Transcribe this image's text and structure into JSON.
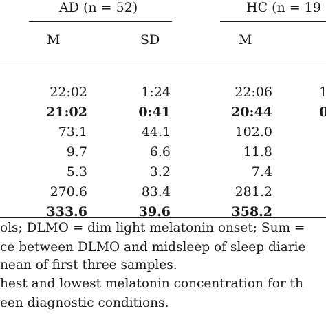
{
  "header": {
    "group_ad": "AD (n = 52)",
    "group_hc": "HC (n = 19",
    "col_m": "M",
    "col_sd": "SD"
  },
  "rows": [
    {
      "ad_m": "22:02",
      "ad_sd": "1:24",
      "hc_m": "22:06",
      "hc_sd": "1",
      "bold": false
    },
    {
      "ad_m": "21:02",
      "ad_sd": "0:41",
      "hc_m": "20:44",
      "hc_sd": "0",
      "bold": true
    },
    {
      "ad_m": "73.1",
      "ad_sd": "44.1",
      "hc_m": "102.0",
      "hc_sd": "",
      "bold": false
    },
    {
      "ad_m": "9.7",
      "ad_sd": "6.6",
      "hc_m": "11.8",
      "hc_sd": "",
      "bold": false
    },
    {
      "ad_m": "5.3",
      "ad_sd": "3.2",
      "hc_m": "7.4",
      "hc_sd": "",
      "bold": false
    },
    {
      "ad_m": "270.6",
      "ad_sd": "83.4",
      "hc_m": "281.2",
      "hc_sd": "",
      "bold": false
    },
    {
      "ad_m": "333.6",
      "ad_sd": "39.6",
      "hc_m": "358.2",
      "hc_sd": "",
      "bold": true
    }
  ],
  "footnotes": [
    "ols; DLMO = dim light melatonin onset; Sum =",
    "ce between DLMO and midsleep of sleep diarie",
    "nean of first three samples.",
    "hest and lowest melatonin concentration for th",
    "een diagnostic conditions."
  ]
}
